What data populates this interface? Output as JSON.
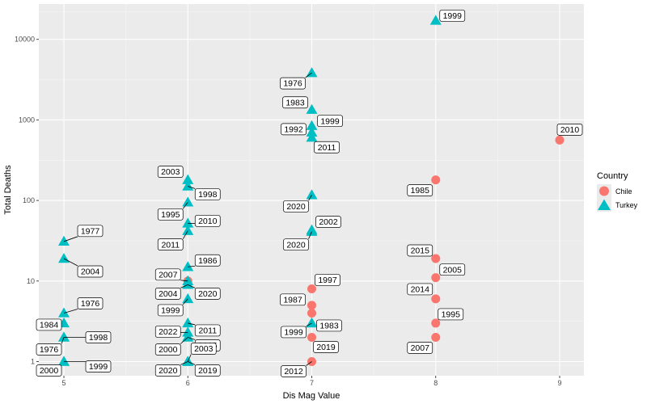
{
  "chart_data": {
    "type": "scatter",
    "xlabel": "Dis Mag Value",
    "ylabel": "Total Deaths",
    "x_scale": "linear",
    "y_scale": "log10",
    "xlim": [
      4.8,
      9.2
    ],
    "ylim": [
      0.8,
      27000
    ],
    "x_ticks": [
      5,
      6,
      7,
      8,
      9
    ],
    "x_tick_labels": [
      "5",
      "6",
      "7",
      "8",
      "9"
    ],
    "y_ticks": [
      1,
      10,
      100,
      1000,
      10000
    ],
    "y_tick_labels": [
      "1",
      "10",
      "100",
      "1000",
      "10000"
    ],
    "grid": true,
    "legend": {
      "title": "Country",
      "position": "right",
      "entries": [
        {
          "name": "Chile",
          "shape": "circle",
          "color": "#F8766D"
        },
        {
          "name": "Turkey",
          "shape": "triangle",
          "color": "#00BFC4"
        }
      ]
    },
    "series": [
      {
        "name": "Chile",
        "points": [
          {
            "x": 6,
            "y": 10
          },
          {
            "x": 7,
            "y": 8,
            "label": "1997"
          },
          {
            "x": 7,
            "y": 5,
            "label": "1987"
          },
          {
            "x": 7,
            "y": 4
          },
          {
            "x": 7,
            "y": 2,
            "label": "2019"
          },
          {
            "x": 7,
            "y": 1,
            "label": "2012"
          },
          {
            "x": 8,
            "y": 180,
            "label": "1985"
          },
          {
            "x": 8,
            "y": 19,
            "label": "2015"
          },
          {
            "x": 8,
            "y": 11,
            "label": "2005"
          },
          {
            "x": 8,
            "y": 6,
            "label": "2014"
          },
          {
            "x": 8,
            "y": 3,
            "label": "1995"
          },
          {
            "x": 8,
            "y": 2,
            "label": "2007"
          },
          {
            "x": 9,
            "y": 562,
            "label": "2010"
          }
        ]
      },
      {
        "name": "Turkey",
        "points": [
          {
            "x": 5,
            "y": 31,
            "label": "1977"
          },
          {
            "x": 5,
            "y": 19,
            "label": "2004"
          },
          {
            "x": 5,
            "y": 4,
            "label": "1976"
          },
          {
            "x": 5,
            "y": 3,
            "label": "1984"
          },
          {
            "x": 5,
            "y": 2,
            "label": "1998"
          },
          {
            "x": 5,
            "y": 2,
            "label": "1976"
          },
          {
            "x": 5,
            "y": 1,
            "label": "1999"
          },
          {
            "x": 5,
            "y": 1,
            "label": "2000"
          },
          {
            "x": 6,
            "y": 180,
            "label": "2003"
          },
          {
            "x": 6,
            "y": 150,
            "label": "1998"
          },
          {
            "x": 6,
            "y": 95,
            "label": "1995"
          },
          {
            "x": 6,
            "y": 52,
            "label": "2010"
          },
          {
            "x": 6,
            "y": 42,
            "label": "2011"
          },
          {
            "x": 6,
            "y": 15,
            "label": "1986"
          },
          {
            "x": 6,
            "y": 10,
            "label": "2007"
          },
          {
            "x": 6,
            "y": 9,
            "label": "2004"
          },
          {
            "x": 6,
            "y": 9,
            "label": "2020"
          },
          {
            "x": 6,
            "y": 6,
            "label": "1999"
          },
          {
            "x": 6,
            "y": 3,
            "label": "2011"
          },
          {
            "x": 6,
            "y": 2.3,
            "label": "2022"
          },
          {
            "x": 6,
            "y": 2,
            "label": "2005"
          },
          {
            "x": 6,
            "y": 2,
            "label": "2000"
          },
          {
            "x": 6,
            "y": 1,
            "label": "2003"
          },
          {
            "x": 6,
            "y": 1,
            "label": "2019"
          },
          {
            "x": 6,
            "y": 1,
            "label": "2020"
          },
          {
            "x": 7,
            "y": 3840,
            "label": "1976"
          },
          {
            "x": 7,
            "y": 1340,
            "label": "1983"
          },
          {
            "x": 7,
            "y": 845,
            "label": "1999"
          },
          {
            "x": 7,
            "y": 700,
            "label": "1992"
          },
          {
            "x": 7,
            "y": 604,
            "label": "2011"
          },
          {
            "x": 7,
            "y": 117,
            "label": "2020"
          },
          {
            "x": 7,
            "y": 43,
            "label": "2002"
          },
          {
            "x": 7,
            "y": 41,
            "label": "2020"
          },
          {
            "x": 7,
            "y": 3,
            "label": "1983"
          },
          {
            "x": 7,
            "y": 3,
            "label": "1999"
          },
          {
            "x": 8,
            "y": 17118,
            "label": "1999"
          }
        ]
      }
    ]
  }
}
